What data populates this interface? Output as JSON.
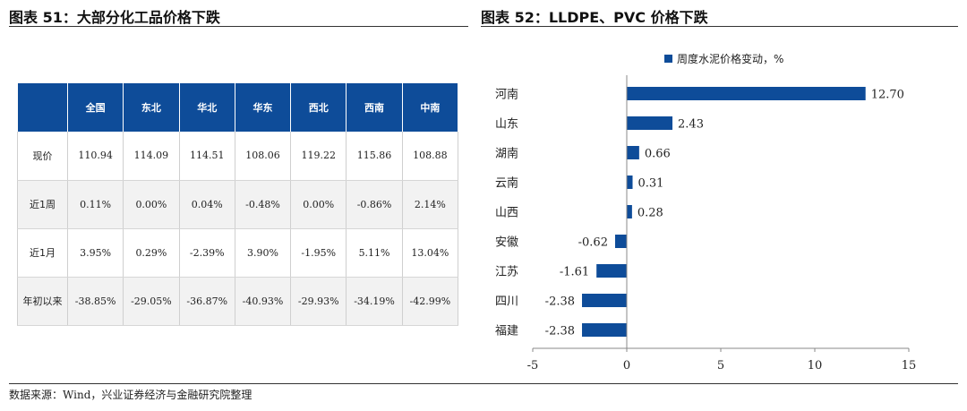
{
  "left_panel": {
    "title": "图表 51：大部分化工品价格下跌",
    "table": {
      "columns": [
        "",
        "全国",
        "东北",
        "华北",
        "华东",
        "西北",
        "西南",
        "中南"
      ],
      "rows": [
        {
          "label": "现价",
          "cells": [
            "110.94",
            "114.09",
            "114.51",
            "108.06",
            "119.22",
            "115.86",
            "108.88"
          ]
        },
        {
          "label": "近1周",
          "cells": [
            "0.11%",
            "0.00%",
            "0.04%",
            "-0.48%",
            "0.00%",
            "-0.86%",
            "2.14%"
          ]
        },
        {
          "label": "近1月",
          "cells": [
            "3.95%",
            "0.29%",
            "-2.39%",
            "3.90%",
            "-1.95%",
            "5.11%",
            "13.04%"
          ]
        },
        {
          "label": "年初以来",
          "cells": [
            "-38.85%",
            "-29.05%",
            "-36.87%",
            "-40.93%",
            "-29.93%",
            "-34.19%",
            "-42.99%"
          ]
        }
      ]
    }
  },
  "right_panel": {
    "title": "图表 52：LLDPE、PVC 价格下跌"
  },
  "chart_data": {
    "type": "bar",
    "orientation": "horizontal",
    "categories": [
      "河南",
      "山东",
      "湖南",
      "云南",
      "山西",
      "安徽",
      "江苏",
      "四川",
      "福建"
    ],
    "series": [
      {
        "name": "周度水泥价格变动，%",
        "values": [
          12.7,
          2.43,
          0.66,
          0.31,
          0.28,
          -0.62,
          -1.61,
          -2.38,
          -2.38
        ]
      }
    ],
    "data_labels": [
      "12.70",
      "2.43",
      "0.66",
      "0.31",
      "0.28",
      "-0.62",
      "-1.61",
      "-2.38",
      "-2.38"
    ],
    "xlim": [
      -5,
      15
    ],
    "xticks": [
      "-5",
      "0",
      "5",
      "10",
      "15"
    ],
    "legend": "top",
    "grid": false,
    "color": "#0e4c99"
  },
  "footer": {
    "source": "数据来源：Wind，兴业证券经济与金融研究院整理"
  }
}
